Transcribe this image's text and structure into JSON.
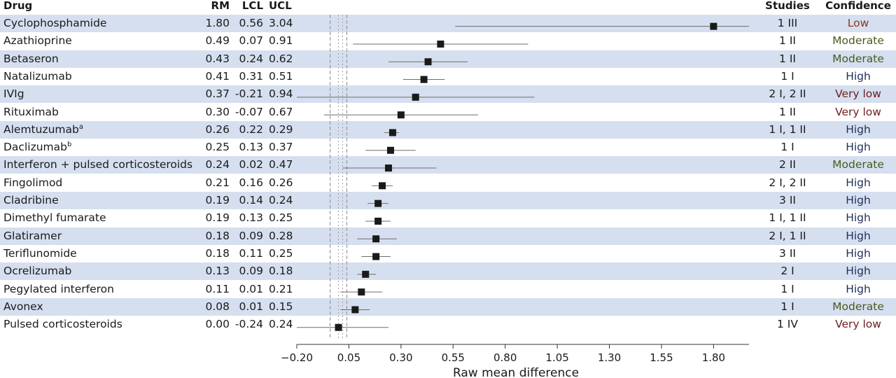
{
  "headers": {
    "drug": "Drug",
    "rm": "RM",
    "lcl": "LCL",
    "ucl": "UCL",
    "studies": "Studies",
    "confidence": "Confidence"
  },
  "confidence_colors": {
    "Low": "#8b3a1a",
    "Moderate": "#4a5a1e",
    "High": "#1f2f5a",
    "Very low": "#6b1f1f"
  },
  "row_shade_color": "#d5dfef",
  "chart_data": {
    "type": "forest",
    "xlabel": "Raw mean difference",
    "xticks": [
      -0.2,
      0.05,
      0.3,
      0.55,
      0.8,
      1.05,
      1.3,
      1.55,
      1.8
    ],
    "xtick_labels": [
      "−0.20",
      "0.05",
      "0.30",
      "0.55",
      "0.80",
      "1.05",
      "1.30",
      "1.55",
      "1.80"
    ],
    "xlim": [
      -0.2,
      1.97
    ],
    "reference_lines": [
      -0.04,
      0.0,
      0.02,
      0.04
    ],
    "rows": [
      {
        "drug": "Cyclophosphamide",
        "sup": "",
        "rm": 1.8,
        "lcl": 0.56,
        "ucl": 3.04,
        "rm_text": "1.80",
        "lcl_text": "0.56",
        "ucl_text": "3.04",
        "studies": "1 III",
        "confidence": "Low"
      },
      {
        "drug": "Azathioprine",
        "sup": "",
        "rm": 0.49,
        "lcl": 0.07,
        "ucl": 0.91,
        "rm_text": "0.49",
        "lcl_text": "0.07",
        "ucl_text": "0.91",
        "studies": "1 II",
        "confidence": "Moderate"
      },
      {
        "drug": "Betaseron",
        "sup": "",
        "rm": 0.43,
        "lcl": 0.24,
        "ucl": 0.62,
        "rm_text": "0.43",
        "lcl_text": "0.24",
        "ucl_text": "0.62",
        "studies": "1 II",
        "confidence": "Moderate"
      },
      {
        "drug": "Natalizumab",
        "sup": "",
        "rm": 0.41,
        "lcl": 0.31,
        "ucl": 0.51,
        "rm_text": "0.41",
        "lcl_text": "0.31",
        "ucl_text": "0.51",
        "studies": "1 I",
        "confidence": "High"
      },
      {
        "drug": "IVIg",
        "sup": "",
        "rm": 0.37,
        "lcl": -0.21,
        "ucl": 0.94,
        "rm_text": "0.37",
        "lcl_text": "-0.21",
        "ucl_text": "0.94",
        "studies": "2 I, 2 II",
        "confidence": "Very low"
      },
      {
        "drug": "Rituximab",
        "sup": "",
        "rm": 0.3,
        "lcl": -0.07,
        "ucl": 0.67,
        "rm_text": "0.30",
        "lcl_text": "-0.07",
        "ucl_text": "0.67",
        "studies": "1 II",
        "confidence": "Very low"
      },
      {
        "drug": "Alemtuzumab",
        "sup": "a",
        "rm": 0.26,
        "lcl": 0.22,
        "ucl": 0.29,
        "rm_text": "0.26",
        "lcl_text": "0.22",
        "ucl_text": "0.29",
        "studies": "1 I, 1 II",
        "confidence": "High"
      },
      {
        "drug": "Daclizumab",
        "sup": "b",
        "rm": 0.25,
        "lcl": 0.13,
        "ucl": 0.37,
        "rm_text": "0.25",
        "lcl_text": "0.13",
        "ucl_text": "0.37",
        "studies": "1 I",
        "confidence": "High"
      },
      {
        "drug": "Interferon + pulsed corticosteroids",
        "sup": "",
        "rm": 0.24,
        "lcl": 0.02,
        "ucl": 0.47,
        "rm_text": "0.24",
        "lcl_text": "0.02",
        "ucl_text": "0.47",
        "studies": "2 II",
        "confidence": "Moderate"
      },
      {
        "drug": "Fingolimod",
        "sup": "",
        "rm": 0.21,
        "lcl": 0.16,
        "ucl": 0.26,
        "rm_text": "0.21",
        "lcl_text": "0.16",
        "ucl_text": "0.26",
        "studies": "2 I, 2 II",
        "confidence": "High"
      },
      {
        "drug": "Cladribine",
        "sup": "",
        "rm": 0.19,
        "lcl": 0.14,
        "ucl": 0.24,
        "rm_text": "0.19",
        "lcl_text": "0.14",
        "ucl_text": "0.24",
        "studies": "3 II",
        "confidence": "High"
      },
      {
        "drug": "Dimethyl fumarate",
        "sup": "",
        "rm": 0.19,
        "lcl": 0.13,
        "ucl": 0.25,
        "rm_text": "0.19",
        "lcl_text": "0.13",
        "ucl_text": "0.25",
        "studies": "1 I, 1 II",
        "confidence": "High"
      },
      {
        "drug": "Glatiramer",
        "sup": "",
        "rm": 0.18,
        "lcl": 0.09,
        "ucl": 0.28,
        "rm_text": "0.18",
        "lcl_text": "0.09",
        "ucl_text": "0.28",
        "studies": "2 I, 1 II",
        "confidence": "High"
      },
      {
        "drug": "Teriflunomide",
        "sup": "",
        "rm": 0.18,
        "lcl": 0.11,
        "ucl": 0.25,
        "rm_text": "0.18",
        "lcl_text": "0.11",
        "ucl_text": "0.25",
        "studies": "3 II",
        "confidence": "High"
      },
      {
        "drug": "Ocrelizumab",
        "sup": "",
        "rm": 0.13,
        "lcl": 0.09,
        "ucl": 0.18,
        "rm_text": "0.13",
        "lcl_text": "0.09",
        "ucl_text": "0.18",
        "studies": "2 I",
        "confidence": "High"
      },
      {
        "drug": "Pegylated interferon",
        "sup": "",
        "rm": 0.11,
        "lcl": 0.01,
        "ucl": 0.21,
        "rm_text": "0.11",
        "lcl_text": "0.01",
        "ucl_text": "0.21",
        "studies": "1 I",
        "confidence": "High"
      },
      {
        "drug": "Avonex",
        "sup": "",
        "rm": 0.08,
        "lcl": 0.01,
        "ucl": 0.15,
        "rm_text": "0.08",
        "lcl_text": "0.01",
        "ucl_text": "0.15",
        "studies": "1 I",
        "confidence": "Moderate"
      },
      {
        "drug": "Pulsed corticosteroids",
        "sup": "",
        "rm": 0.0,
        "lcl": -0.24,
        "ucl": 0.24,
        "rm_text": "0.00",
        "lcl_text": "-0.24",
        "ucl_text": "0.24",
        "studies": "1 IV",
        "confidence": "Very low"
      }
    ]
  }
}
